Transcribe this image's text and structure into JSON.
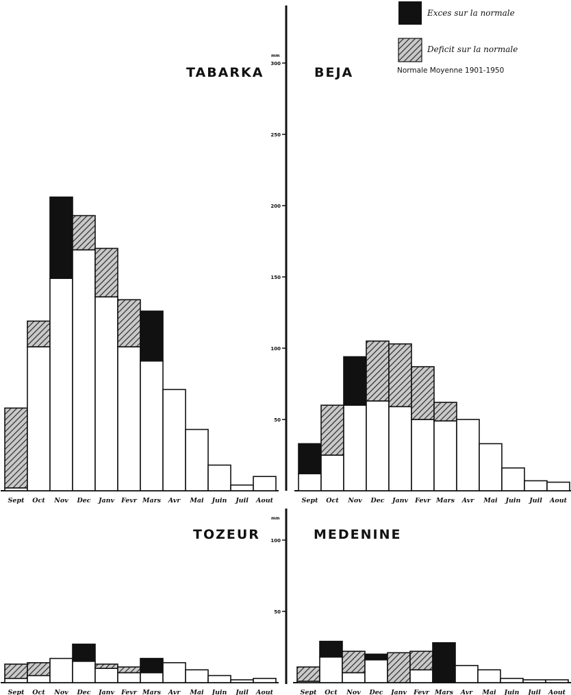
{
  "legend": {
    "excess_label": "Exces sur la normale",
    "deficit_label": "Deficit sur la normale",
    "normal_note": "Normale Moyenne 1901-1950"
  },
  "units": {
    "top": "mm",
    "bottom": "mm"
  },
  "styles": {
    "excess_fill": "#111111",
    "deficit_fill": "hatched-gray",
    "normal_fill": "#ffffff",
    "ink": "#111111"
  },
  "chart_data": [
    {
      "type": "bar",
      "station": "TABARKA",
      "title": "TABARKA",
      "categories": [
        "Sept",
        "Oct",
        "Nov",
        "Dec",
        "Janv",
        "Fevr",
        "Mars",
        "Avr",
        "Mai",
        "Juin",
        "Juil",
        "Aout"
      ],
      "series": [
        {
          "name": "Normale",
          "values": [
            2,
            101,
            149,
            169,
            136,
            101,
            91,
            71,
            43,
            18,
            4,
            10
          ]
        },
        {
          "name": "Exces sur la normale",
          "values": [
            0,
            0,
            57,
            0,
            0,
            0,
            35,
            0,
            0,
            0,
            0,
            0
          ]
        },
        {
          "name": "Deficit sur la normale",
          "values": [
            56,
            18,
            0,
            24,
            34,
            33,
            0,
            0,
            0,
            0,
            0,
            0
          ]
        }
      ],
      "ylim": [
        0,
        350
      ]
    },
    {
      "type": "bar",
      "station": "BEJA",
      "title": "BEJA",
      "categories": [
        "Sept",
        "Oct",
        "Nov",
        "Dec",
        "Janv",
        "Fevr",
        "Mars",
        "Avr",
        "Mai",
        "Juin",
        "Juil",
        "Aout"
      ],
      "series": [
        {
          "name": "Normale",
          "values": [
            12,
            25,
            60,
            63,
            59,
            50,
            49,
            50,
            33,
            16,
            7,
            6
          ]
        },
        {
          "name": "Exces sur la normale",
          "values": [
            21,
            0,
            34,
            0,
            0,
            0,
            0,
            0,
            0,
            0,
            0,
            0
          ]
        },
        {
          "name": "Deficit sur la normale",
          "values": [
            0,
            35,
            0,
            42,
            44,
            37,
            13,
            0,
            0,
            0,
            0,
            0
          ]
        }
      ],
      "yticks": [
        50,
        100,
        150,
        200,
        250,
        300
      ],
      "ylim": [
        0,
        350
      ]
    },
    {
      "type": "bar",
      "station": "TOZEUR",
      "title": "TOZEUR",
      "categories": [
        "Sept",
        "Oct",
        "Nov",
        "Dec",
        "Janv",
        "Fevr",
        "Mars",
        "Avr",
        "Mai",
        "Juin",
        "Juil",
        "Aout"
      ],
      "series": [
        {
          "name": "Normale",
          "values": [
            3,
            5,
            17,
            15,
            10,
            7,
            7,
            14,
            9,
            5,
            2,
            3
          ]
        },
        {
          "name": "Exces sur la normale",
          "values": [
            0,
            0,
            0,
            12,
            0,
            0,
            10,
            0,
            0,
            0,
            0,
            0
          ]
        },
        {
          "name": "Deficit sur la normale",
          "values": [
            10,
            9,
            0,
            0,
            3,
            4,
            0,
            0,
            0,
            0,
            0,
            0
          ]
        }
      ],
      "ylim": [
        0,
        120
      ]
    },
    {
      "type": "bar",
      "station": "MEDENINE",
      "title": "MEDENINE",
      "categories": [
        "Sept",
        "Oct",
        "Nov",
        "Dec",
        "Janv",
        "Fevr",
        "Mars",
        "Avr",
        "Mai",
        "Juin",
        "Juil",
        "Aout"
      ],
      "series": [
        {
          "name": "Normale",
          "values": [
            1,
            18,
            7,
            16,
            0,
            9,
            0,
            12,
            9,
            3,
            2,
            2
          ]
        },
        {
          "name": "Exces sur la normale",
          "values": [
            0,
            11,
            0,
            4,
            0,
            0,
            28,
            0,
            0,
            0,
            0,
            0
          ]
        },
        {
          "name": "Deficit sur la normale",
          "values": [
            10,
            0,
            15,
            0,
            21,
            13,
            0,
            0,
            0,
            0,
            0,
            0
          ]
        }
      ],
      "yticks": [
        50,
        100
      ],
      "ylim": [
        0,
        120
      ]
    }
  ]
}
